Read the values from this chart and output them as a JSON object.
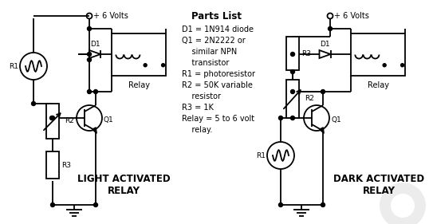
{
  "bg_color": "#ffffff",
  "line_color": "#000000",
  "title_left": "LIGHT ACTIVATED\nRELAY",
  "title_right": "DARK ACTIVATED\nRELAY",
  "parts_list_title": "Parts List",
  "parts_list": "D1 = 1N914 diode\nQ1 = 2N2222 or\n    similar NPN\n    transistor\nR1 = photoresistor\nR2 = 50K variable\n    resistor\nR3 = 1K\nRelay = 5 to 6 volt\n    relay.",
  "lw": 1.3,
  "dot_r": 2.5
}
